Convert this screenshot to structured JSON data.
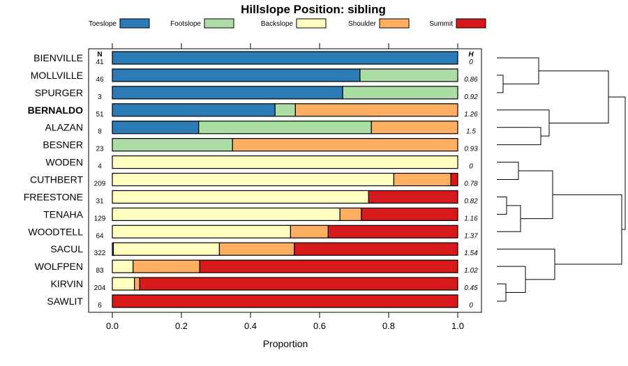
{
  "chart_data": {
    "type": "bar",
    "orientation": "horizontal",
    "stacked": true,
    "title": "Hillslope Position: sibling",
    "xlabel": "Proportion",
    "xlim": [
      0,
      1
    ],
    "xticks": [
      "0.0",
      "0.2",
      "0.4",
      "0.6",
      "0.8",
      "1.0"
    ],
    "n_header": "N",
    "h_header": "H",
    "legend_position": "top",
    "series": [
      {
        "name": "Toeslope",
        "color": "#2c7bb6"
      },
      {
        "name": "Footslope",
        "color": "#abdda4"
      },
      {
        "name": "Backslope",
        "color": "#ffffbf"
      },
      {
        "name": "Shoulder",
        "color": "#fdae61"
      },
      {
        "name": "Summit",
        "color": "#d7191c"
      }
    ],
    "rows": [
      {
        "label": "BIENVILLE",
        "n": "41",
        "h": "0",
        "bold": false,
        "values": [
          1.0,
          0,
          0,
          0,
          0
        ]
      },
      {
        "label": "MOLLVILLE",
        "n": "46",
        "h": "0.86",
        "bold": false,
        "values": [
          0.717,
          0.283,
          0,
          0,
          0
        ]
      },
      {
        "label": "SPURGER",
        "n": "3",
        "h": "0.92",
        "bold": false,
        "values": [
          0.667,
          0.333,
          0,
          0,
          0
        ]
      },
      {
        "label": "BERNALDO",
        "n": "51",
        "h": "1.26",
        "bold": true,
        "values": [
          0.471,
          0.059,
          0,
          0.47,
          0
        ]
      },
      {
        "label": "ALAZAN",
        "n": "8",
        "h": "1.5",
        "bold": false,
        "values": [
          0.25,
          0.5,
          0,
          0.25,
          0
        ]
      },
      {
        "label": "BESNER",
        "n": "23",
        "h": "0.93",
        "bold": false,
        "values": [
          0,
          0.348,
          0,
          0.652,
          0
        ]
      },
      {
        "label": "WODEN",
        "n": "4",
        "h": "0",
        "bold": false,
        "values": [
          0,
          0,
          1.0,
          0,
          0
        ]
      },
      {
        "label": "CUTHBERT",
        "n": "209",
        "h": "0.78",
        "bold": false,
        "values": [
          0,
          0,
          0.815,
          0.165,
          0.02
        ]
      },
      {
        "label": "FREESTONE",
        "n": "31",
        "h": "0.82",
        "bold": false,
        "values": [
          0,
          0,
          0.742,
          0,
          0.258
        ]
      },
      {
        "label": "TENAHA",
        "n": "129",
        "h": "1.16",
        "bold": false,
        "values": [
          0,
          0,
          0.659,
          0.062,
          0.279
        ]
      },
      {
        "label": "WOODTELL",
        "n": "64",
        "h": "1.37",
        "bold": false,
        "values": [
          0,
          0,
          0.516,
          0.109,
          0.375
        ]
      },
      {
        "label": "SACUL",
        "n": "322",
        "h": "1.54",
        "bold": false,
        "values": [
          0.003,
          0,
          0.307,
          0.217,
          0.473
        ]
      },
      {
        "label": "WOLFPEN",
        "n": "83",
        "h": "1.02",
        "bold": false,
        "values": [
          0,
          0,
          0.06,
          0.193,
          0.747
        ]
      },
      {
        "label": "KIRVIN",
        "n": "204",
        "h": "0.45",
        "bold": false,
        "values": [
          0,
          0,
          0.064,
          0.015,
          0.921
        ]
      },
      {
        "label": "SAWLIT",
        "n": "6",
        "h": "0",
        "bold": false,
        "values": [
          0,
          0,
          0,
          0,
          1.0
        ]
      }
    ]
  }
}
